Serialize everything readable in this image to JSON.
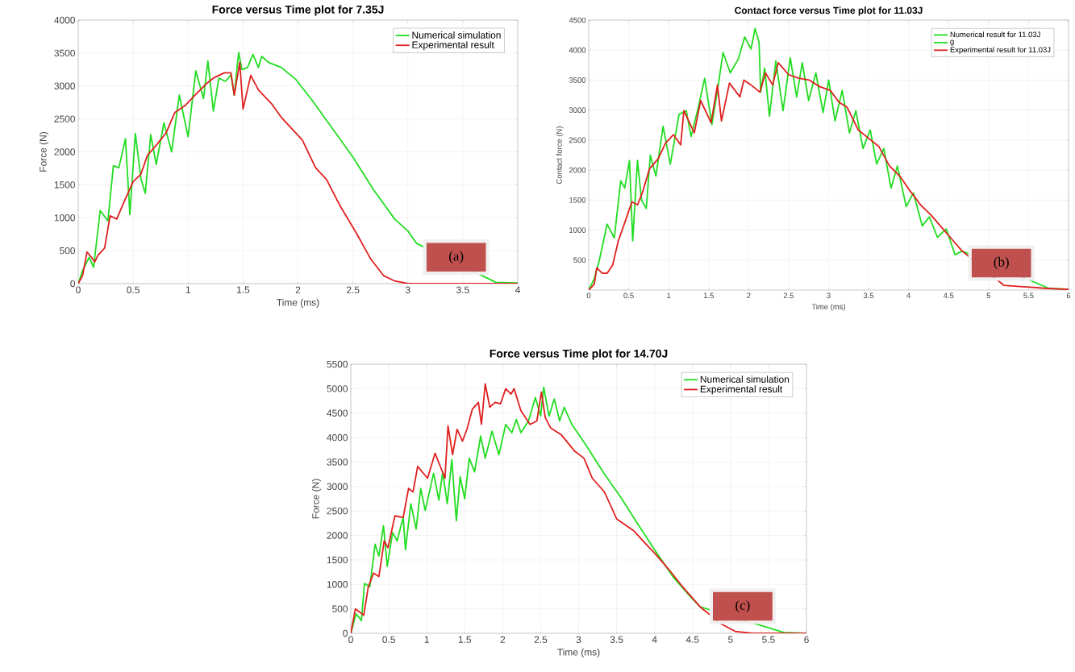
{
  "chart_data": [
    {
      "type": "line",
      "title": "Force versus Time plot for 7.35J",
      "xlabel": "Time (ms)",
      "ylabel": "Force (N)",
      "xlim": [
        0,
        4
      ],
      "ylim": [
        0,
        4000
      ],
      "xticks": [
        0,
        0.5,
        1,
        1.5,
        2,
        2.5,
        3,
        3.5,
        4
      ],
      "yticks": [
        0,
        500,
        1000,
        1500,
        2000,
        2500,
        3000,
        3500,
        4000
      ],
      "grid": true,
      "legend": "top right",
      "annotations": [
        "(a)"
      ],
      "series": [
        {
          "name": "Numerical simulation",
          "color": "#22dd22",
          "x": [
            0,
            0.04,
            0.1,
            0.14,
            0.2,
            0.27,
            0.32,
            0.37,
            0.43,
            0.47,
            0.52,
            0.57,
            0.61,
            0.66,
            0.71,
            0.78,
            0.85,
            0.92,
            1.0,
            1.07,
            1.14,
            1.18,
            1.23,
            1.28,
            1.34,
            1.39,
            1.42,
            1.46,
            1.49,
            1.54,
            1.59,
            1.64,
            1.67,
            1.73,
            1.85,
            1.98,
            2.13,
            2.32,
            2.5,
            2.69,
            2.88,
            3.0,
            3.08,
            3.8,
            4
          ],
          "values": [
            0,
            200,
            400,
            250,
            1110,
            950,
            1790,
            1760,
            2200,
            1050,
            2280,
            1600,
            1370,
            2260,
            1810,
            2440,
            2000,
            2860,
            2230,
            3230,
            2810,
            3380,
            2620,
            3120,
            3070,
            3170,
            2860,
            3510,
            3250,
            3280,
            3480,
            3280,
            3450,
            3360,
            3280,
            3100,
            2780,
            2340,
            1920,
            1420,
            980,
            800,
            610,
            20,
            10
          ]
        },
        {
          "name": "Experimental result",
          "color": "#e02020",
          "x": [
            0,
            0.04,
            0.08,
            0.12,
            0.15,
            0.18,
            0.24,
            0.29,
            0.35,
            0.43,
            0.5,
            0.57,
            0.63,
            0.71,
            0.8,
            0.88,
            0.97,
            1.08,
            1.17,
            1.23,
            1.33,
            1.39,
            1.42,
            1.47,
            1.5,
            1.57,
            1.64,
            1.76,
            1.85,
            1.95,
            2.04,
            2.16,
            2.26,
            2.38,
            2.53,
            2.66,
            2.78,
            2.88,
            3.0,
            3.09,
            4
          ],
          "values": [
            0,
            120,
            480,
            400,
            330,
            430,
            540,
            1030,
            980,
            1290,
            1550,
            1660,
            1950,
            2100,
            2290,
            2600,
            2700,
            2890,
            3040,
            3120,
            3200,
            3200,
            2860,
            3360,
            2650,
            3160,
            2940,
            2730,
            2520,
            2340,
            2180,
            1760,
            1580,
            1190,
            770,
            380,
            120,
            40,
            0,
            0,
            0
          ]
        }
      ]
    },
    {
      "type": "line",
      "title": "Contact force versus Time plot for 11.03J",
      "xlabel": "Time (ms)",
      "ylabel": "Contact force (N)",
      "xlim": [
        0,
        6
      ],
      "ylim": [
        0,
        4500
      ],
      "xticks": [
        0,
        0.5,
        1,
        1.5,
        2,
        2.5,
        3,
        3.5,
        4,
        4.5,
        5,
        5.5,
        6
      ],
      "yticks": [
        500,
        1000,
        1500,
        2000,
        2500,
        3000,
        3500,
        4000,
        4500
      ],
      "grid": true,
      "legend": "top right",
      "annotations": [
        "(b)"
      ],
      "series": [
        {
          "name": "Numerical result for 11.03J",
          "color": "#22dd22",
          "x": [
            0,
            0.07,
            0.13,
            0.23,
            0.32,
            0.4,
            0.45,
            0.51,
            0.55,
            0.61,
            0.66,
            0.72,
            0.77,
            0.84,
            0.93,
            1.02,
            1.13,
            1.22,
            1.28,
            1.36,
            1.45,
            1.54,
            1.61,
            1.68,
            1.77,
            1.87,
            1.95,
            2.03,
            2.08,
            2.13,
            2.15,
            2.2,
            2.26,
            2.34,
            2.43,
            2.52,
            2.6,
            2.67,
            2.75,
            2.84,
            2.93,
            3.0,
            3.08,
            3.17,
            3.26,
            3.34,
            3.43,
            3.52,
            3.6,
            3.69,
            3.78,
            3.86,
            3.97,
            4.06,
            4.17,
            4.26,
            4.36,
            4.47,
            4.58,
            4.67,
            5.75,
            6
          ],
          "values": [
            0,
            190,
            480,
            1100,
            870,
            1820,
            1700,
            2160,
            820,
            2160,
            1500,
            1360,
            2250,
            1900,
            2730,
            2100,
            2930,
            2990,
            2560,
            2990,
            3530,
            2760,
            3330,
            3960,
            3620,
            3850,
            4220,
            4020,
            4360,
            4130,
            3300,
            3700,
            2900,
            3820,
            2990,
            3870,
            3220,
            3790,
            3160,
            3620,
            2960,
            3500,
            2820,
            3330,
            2620,
            2990,
            2360,
            2670,
            2100,
            2360,
            1700,
            2070,
            1390,
            1620,
            1070,
            1220,
            880,
            1020,
            590,
            650,
            30,
            10
          ]
        },
        {
          "name": "g",
          "color": "#22dd22"
        },
        {
          "name": "Experimental result for 11.03J",
          "color": "#e02020",
          "x": [
            0,
            0.07,
            0.1,
            0.17,
            0.23,
            0.3,
            0.37,
            0.46,
            0.54,
            0.61,
            0.67,
            0.76,
            0.87,
            0.96,
            1.06,
            1.15,
            1.19,
            1.32,
            1.4,
            1.53,
            1.61,
            1.66,
            1.76,
            1.89,
            1.94,
            2.03,
            2.14,
            2.21,
            2.3,
            2.37,
            2.5,
            2.63,
            2.76,
            2.89,
            3.02,
            3.13,
            3.23,
            3.37,
            3.5,
            3.63,
            3.76,
            3.89,
            4.02,
            4.15,
            4.28,
            4.41,
            4.54,
            4.67,
            5.19,
            5.7,
            6
          ],
          "values": [
            0,
            100,
            370,
            280,
            280,
            420,
            820,
            1160,
            1470,
            1420,
            1620,
            2020,
            2190,
            2450,
            2590,
            2420,
            2990,
            2620,
            3160,
            2790,
            3420,
            2820,
            3450,
            3220,
            3500,
            3420,
            3300,
            3620,
            3420,
            3790,
            3590,
            3530,
            3500,
            3390,
            3330,
            3130,
            3050,
            2670,
            2530,
            2390,
            2070,
            1900,
            1650,
            1420,
            1250,
            1050,
            850,
            650,
            80,
            30,
            10
          ]
        }
      ]
    },
    {
      "type": "line",
      "title": "Force versus Time plot for 14.70J",
      "xlabel": "Time (ms)",
      "ylabel": "Force (N)",
      "xlim": [
        0,
        6
      ],
      "ylim": [
        0,
        5500
      ],
      "xticks": [
        0,
        0.5,
        1,
        1.5,
        2,
        2.5,
        3,
        3.5,
        4,
        4.5,
        5,
        5.5,
        6
      ],
      "yticks": [
        0,
        500,
        1000,
        1500,
        2000,
        2500,
        3000,
        3500,
        4000,
        4500,
        5000,
        5500
      ],
      "grid": true,
      "legend": "top right",
      "annotations": [
        "(c)"
      ],
      "series": [
        {
          "name": "Numerical simulation",
          "color": "#22dd22",
          "x": [
            0,
            0.07,
            0.14,
            0.18,
            0.25,
            0.32,
            0.37,
            0.43,
            0.48,
            0.55,
            0.61,
            0.69,
            0.72,
            0.79,
            0.86,
            0.92,
            0.98,
            1.09,
            1.16,
            1.21,
            1.27,
            1.33,
            1.39,
            1.44,
            1.5,
            1.56,
            1.63,
            1.71,
            1.77,
            1.86,
            1.95,
            2.04,
            2.12,
            2.18,
            2.24,
            2.34,
            2.43,
            2.5,
            2.54,
            2.61,
            2.68,
            2.75,
            2.81,
            2.91,
            3.09,
            3.32,
            3.55,
            3.78,
            4.0,
            4.24,
            4.47,
            4.6,
            5.7,
            6
          ],
          "values": [
            0,
            400,
            260,
            1020,
            950,
            1820,
            1580,
            2200,
            1370,
            2060,
            1890,
            2370,
            1710,
            2650,
            2130,
            2960,
            2510,
            3270,
            2720,
            3300,
            2650,
            3550,
            2300,
            3200,
            2750,
            3580,
            3300,
            4030,
            3580,
            4130,
            3650,
            4270,
            4100,
            4370,
            4100,
            4340,
            4820,
            4440,
            5030,
            4440,
            4790,
            4340,
            4620,
            4270,
            3860,
            3300,
            2790,
            2230,
            1710,
            1160,
            750,
            540,
            20,
            0
          ]
        },
        {
          "name": "Experimental result",
          "color": "#e02020",
          "x": [
            0,
            0.06,
            0.11,
            0.17,
            0.23,
            0.3,
            0.37,
            0.44,
            0.49,
            0.58,
            0.69,
            0.76,
            0.82,
            0.88,
            1.01,
            1.11,
            1.24,
            1.28,
            1.34,
            1.4,
            1.47,
            1.53,
            1.6,
            1.68,
            1.72,
            1.77,
            1.83,
            1.9,
            1.97,
            2.04,
            2.11,
            2.15,
            2.24,
            2.36,
            2.45,
            2.51,
            2.56,
            2.63,
            2.77,
            2.95,
            3.07,
            3.18,
            3.34,
            3.5,
            3.6,
            3.73,
            3.87,
            4.0,
            4.19,
            4.37,
            4.6,
            4.88,
            5.06,
            5.29,
            6
          ],
          "values": [
            0,
            500,
            440,
            370,
            950,
            1230,
            1160,
            1890,
            1750,
            2400,
            2370,
            2960,
            2890,
            3410,
            3170,
            3680,
            3170,
            4240,
            3650,
            4170,
            3930,
            4170,
            4580,
            4720,
            4270,
            5100,
            4620,
            4720,
            4690,
            5000,
            4890,
            5000,
            4550,
            4270,
            4340,
            4930,
            4410,
            4200,
            4060,
            3720,
            3580,
            3170,
            2890,
            2340,
            2230,
            2090,
            1850,
            1640,
            1300,
            950,
            540,
            190,
            40,
            0,
            0
          ]
        }
      ]
    }
  ]
}
